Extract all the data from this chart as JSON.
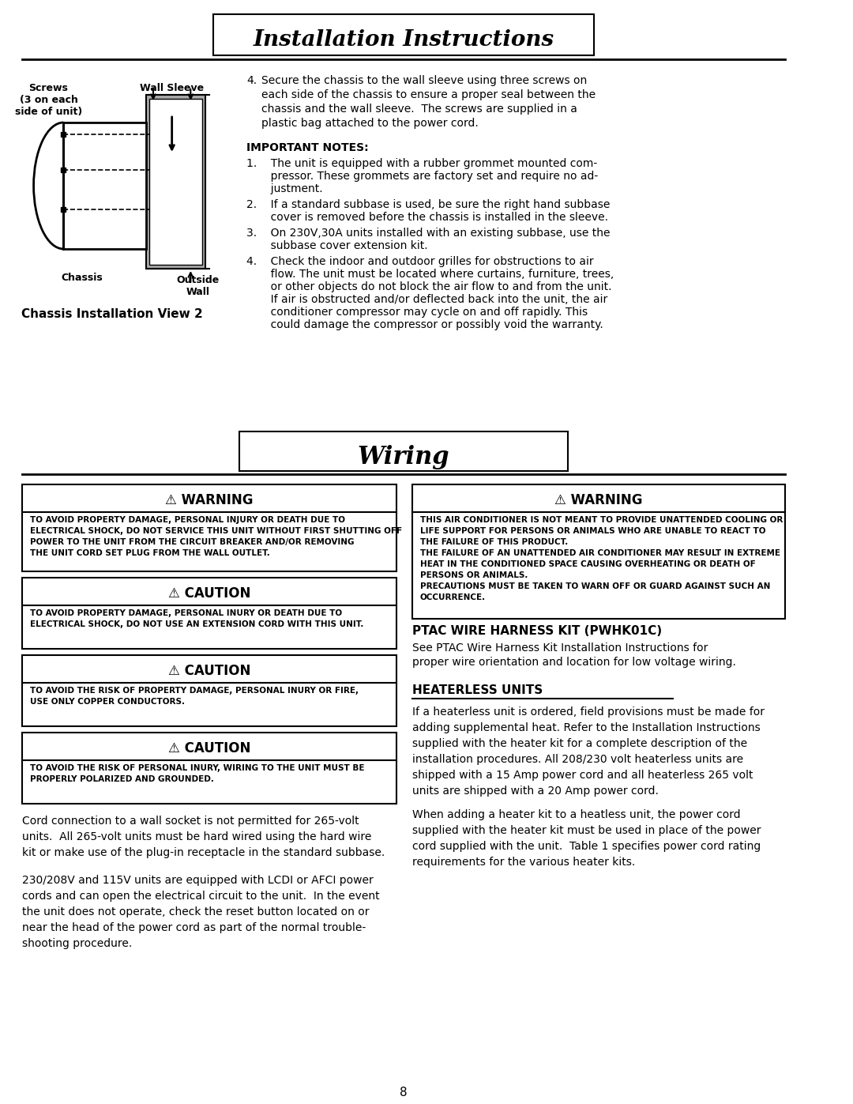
{
  "page_bg": "#ffffff",
  "title1": "Installation Instructions",
  "title2": "Wiring",
  "page_number": "8",
  "section1": {
    "diagram_labels": {
      "screws": "Screws\n(3 on each\nside of unit)",
      "wall_sleeve": "Wall Sleeve",
      "chassis": "Chassis",
      "outside_wall": "Outside\nWall"
    },
    "caption": "Chassis Installation View 2",
    "step4_header": "4.",
    "step4_text": "Secure the chassis to the wall sleeve using three screws on\neach side of the chassis to ensure a proper seal between the\nchassis and the wall sleeve.  The screws are supplied in a\nplastic bag attached to the power cord.",
    "important_notes_header": "IMPORTANT NOTES:",
    "note1": "1.    The unit is equipped with a rubber grommet mounted com-\n       pressor. These grommets are factory set and require no ad-\n       justment.",
    "note2": "2.    If a standard subbase is used, be sure the right hand subbase\n       cover is removed before the chassis is installed in the sleeve.",
    "note3": "3.    On 230V,30A units installed with an existing subbase, use the\n       subbase cover extension kit.",
    "note4": "4.    Check the indoor and outdoor grilles for obstructions to air\n       flow. The unit must be located where curtains, furniture, trees,\n       or other objects do not block the air flow to and from the unit.\n       If air is obstructed and/or deflected back into the unit, the air\n       conditioner compressor may cycle on and off rapidly. This\n       could damage the compressor or possibly void the warranty."
  },
  "warning1": {
    "title": "⚠ WARNING",
    "text": "TO AVOID PROPERTY DAMAGE, PERSONAL INJURY OR DEATH DUE TO\nELECTRICAL SHOCK, DO NOT SERVICE THIS UNIT WITHOUT FIRST SHUTTING OFF\nPOWER TO THE UNIT FROM THE CIRCUIT BREAKER AND/OR REMOVING\nTHE UNIT CORD SET PLUG FROM THE WALL OUTLET."
  },
  "warning2": {
    "title": "⚠ WARNING",
    "text": "THIS AIR CONDITIONER IS NOT MEANT TO PROVIDE UNATTENDED COOLING OR\nLIFE SUPPORT FOR PERSONS OR ANIMALS WHO ARE UNABLE TO REACT TO\nTHE FAILURE OF THIS PRODUCT.\nTHE FAILURE OF AN UNATTENDED AIR CONDITIONER MAY RESULT IN EXTREME\nHEAT IN THE CONDITIONED SPACE CAUSING OVERHEATING OR DEATH OF\nPERSONS OR ANIMALS.\nPRECAUTIONS MUST BE TAKEN TO WARN OFF OR GUARD AGAINST SUCH AN\nOCCURRENCE."
  },
  "caution1": {
    "title": "⚠ CAUTION",
    "text": "TO AVOID PROPERTY DAMAGE, PERSONAL INURY OR DEATH DUE TO\nELECTRICAL SHOCK, DO NOT USE AN EXTENSION CORD WITH THIS UNIT."
  },
  "caution2": {
    "title": "⚠ CAUTION",
    "text": "TO AVOID THE RISK OF PROPERTY DAMAGE, PERSONAL INURY OR FIRE,\nUSE ONLY COPPER CONDUCTORS."
  },
  "caution3": {
    "title": "⚠ CAUTION",
    "text": "TO AVOID THE RISK OF PERSONAL INURY, WIRING TO THE UNIT MUST BE\nPROPERLY POLARIZED AND GROUNDED."
  },
  "ptac_header": "PTAC WIRE HARNESS KIT (PWHK01C)",
  "ptac_text": "See PTAC Wire Harness Kit Installation Instructions for\nproper wire orientation and location for low voltage wiring.",
  "heaterless_header": "HEATERLESS UNITS",
  "heaterless_text1": "If a heaterless unit is ordered, field provisions must be made for\nadding supplemental heat. Refer to the Installation Instructions\nsupplied with the heater kit for a complete description of the\ninstallation procedures. All 208/230 volt heaterless units are\nshipped with a 15 Amp power cord and all heaterless 265 volt\nunits are shipped with a 20 Amp power cord.",
  "heaterless_text2": "When adding a heater kit to a heatless unit, the power cord\nsupplied with the heater kit must be used in place of the power\ncord supplied with the unit.  Table 1 specifies power cord rating\nrequirements for the various heater kits.",
  "left_body_text1": "Cord connection to a wall socket is not permitted for 265-volt\nunits.  All 265-volt units must be hard wired using the hard wire\nkit or make use of the plug-in receptacle in the standard subbase.",
  "left_body_text2": "230/208V and 115V units are equipped with LCDI or AFCI power\ncords and can open the electrical circuit to the unit.  In the event\nthe unit does not operate, check the reset button located on or\nnear the head of the power cord as part of the normal trouble-\nshooting procedure."
}
